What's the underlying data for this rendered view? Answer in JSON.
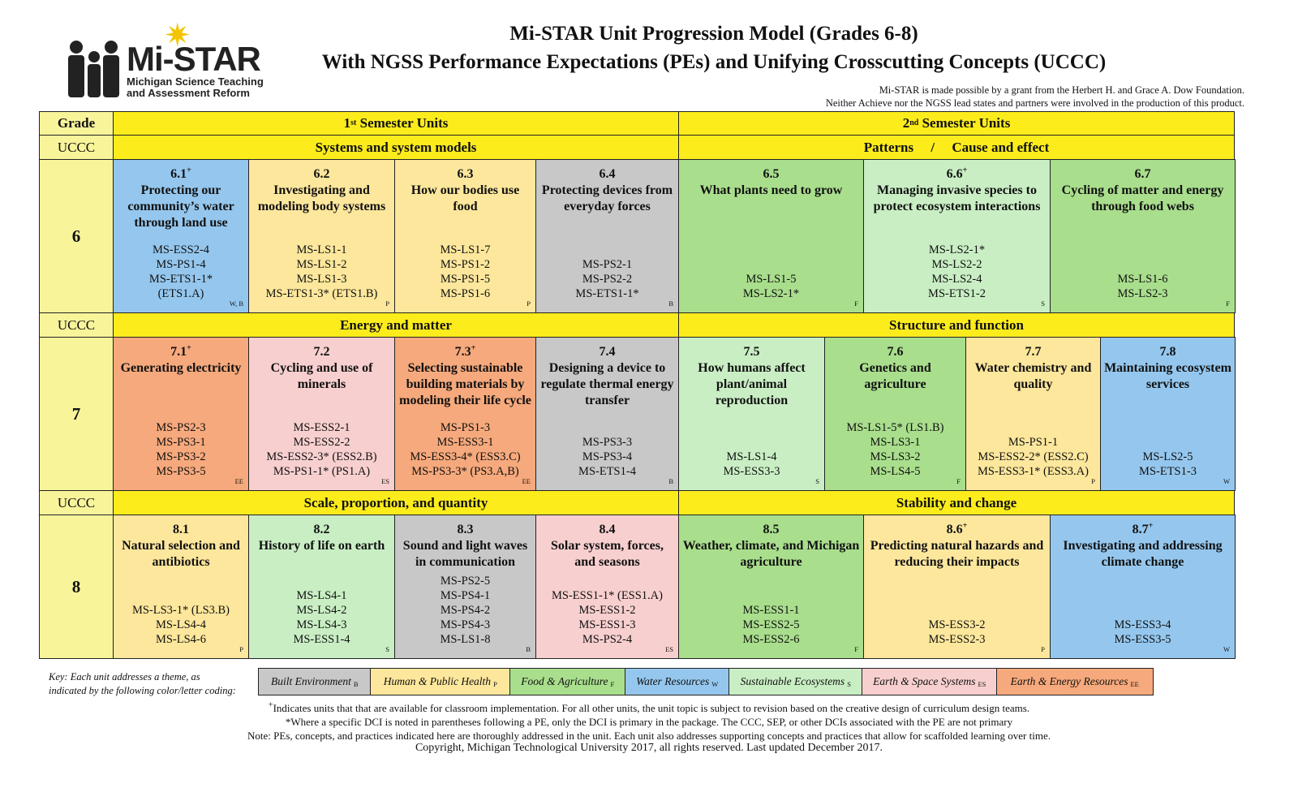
{
  "logo": {
    "brand": "Mi-STAR",
    "line1": "Michigan Science Teaching",
    "line2": "and Assessment Reform"
  },
  "title1": "Mi-STAR Unit Progression Model (Grades 6-8)",
  "title2": "With NGSS Performance Expectations (PEs) and Unifying Crosscutting Concepts (UCCC)",
  "credit1": "Mi-STAR is made possible by a grant from the Herbert H. and Grace A. Dow Foundation.",
  "credit2": "Neither Achieve nor the NGSS lead states and partners were involved in the production of this product.",
  "header": {
    "grade": "Grade",
    "sem1_num": "1",
    "sem1_sup": "st",
    "sem1_rest": " Semester Units",
    "sem2_num": "2",
    "sem2_sup": "nd",
    "sem2_rest": " Semester Units"
  },
  "uccc_label": "UCCC",
  "themes": {
    "g6_s1": "Systems and system models",
    "g6_s2": "Patterns     /     Cause and effect",
    "g7_s1": "Energy and matter",
    "g7_s2": "Structure and function",
    "g8_s1": "Scale, proportion, and quantity",
    "g8_s2": "Stability and change"
  },
  "grades": [
    "6",
    "7",
    "8"
  ],
  "units": {
    "g6": [
      {
        "num": "6.1",
        "plus": "+",
        "title": "Protecting our community’s water through land use",
        "color": "W",
        "pes": [
          "MS-ESS2-4",
          "MS-PS1-4",
          "MS-ETS1-1*",
          "(ETS1.A)"
        ],
        "code": "W, B"
      },
      {
        "num": "6.2",
        "plus": "",
        "title": "Investigating and modeling body systems",
        "color": "P",
        "pes": [
          "MS-LS1-1",
          "MS-LS1-2",
          "MS-LS1-3",
          "MS-ETS1-3* (ETS1.B)"
        ],
        "code": "P"
      },
      {
        "num": "6.3",
        "plus": "",
        "title": "How our bodies use food",
        "color": "P",
        "pes": [
          "MS-LS1-7",
          "MS-PS1-2",
          "MS-PS1-5",
          "MS-PS1-6"
        ],
        "code": "P"
      },
      {
        "num": "6.4",
        "plus": "",
        "title": "Protecting devices from everyday forces",
        "color": "B",
        "pes": [
          "MS-PS2-1",
          "MS-PS2-2",
          "MS-ETS1-1*"
        ],
        "code": "B"
      },
      {
        "num": "6.5",
        "plus": "",
        "title": "What plants need to grow",
        "color": "F",
        "pes": [
          "MS-LS1-5",
          "MS-LS2-1*"
        ],
        "code": "F"
      },
      {
        "num": "6.6",
        "plus": "+",
        "title": "Managing invasive species to protect ecosystem interactions",
        "color": "S",
        "pes": [
          "MS-LS2-1*",
          "MS-LS2-2",
          "MS-LS2-4",
          "MS-ETS1-2"
        ],
        "code": "S"
      },
      {
        "num": "6.7",
        "plus": "",
        "title": "Cycling of matter and energy through food webs",
        "color": "F",
        "pes": [
          "MS-LS1-6",
          "MS-LS2-3"
        ],
        "code": "F"
      }
    ],
    "g7": [
      {
        "num": "7.1",
        "plus": "+",
        "title": "Generating electricity",
        "color": "EE",
        "pes": [
          "MS-PS2-3",
          "MS-PS3-1",
          "MS-PS3-2",
          "MS-PS3-5"
        ],
        "code": "EE"
      },
      {
        "num": "7.2",
        "plus": "",
        "title": "Cycling and use of minerals",
        "color": "ES",
        "pes": [
          "MS-ESS2-1",
          "MS-ESS2-2",
          "MS-ESS2-3* (ESS2.B)",
          "MS-PS1-1* (PS1.A)"
        ],
        "code": "ES"
      },
      {
        "num": "7.3",
        "plus": "+",
        "title": "Selecting sustainable building materials by modeling their life cycle",
        "color": "EE",
        "pes": [
          "MS-PS1-3",
          "MS-ESS3-1",
          "MS-ESS3-4* (ESS3.C)",
          "MS-PS3-3* (PS3.A,B)"
        ],
        "code": "EE"
      },
      {
        "num": "7.4",
        "plus": "",
        "title": "Designing a device to regulate thermal energy transfer",
        "color": "B",
        "pes": [
          "MS-PS3-3",
          "MS-PS3-4",
          "MS-ETS1-4"
        ],
        "code": "B"
      },
      {
        "num": "7.5",
        "plus": "",
        "title": "How humans affect plant/animal reproduction",
        "color": "S",
        "pes": [
          "MS-LS1-4",
          "MS-ESS3-3"
        ],
        "code": "S"
      },
      {
        "num": "7.6",
        "plus": "",
        "title": "Genetics and agriculture",
        "color": "F",
        "pes": [
          "MS-LS1-5* (LS1.B)",
          "MS-LS3-1",
          "MS-LS3-2",
          "MS-LS4-5"
        ],
        "code": "F"
      },
      {
        "num": "7.7",
        "plus": "",
        "title": "Water chemistry and quality",
        "color": "P",
        "pes": [
          "MS-PS1-1",
          "MS-ESS2-2* (ESS2.C)",
          "MS-ESS3-1* (ESS3.A)"
        ],
        "code": "P"
      },
      {
        "num": "7.8",
        "plus": "",
        "title": "Maintaining ecosystem services",
        "color": "W",
        "pes": [
          "MS-LS2-5",
          "MS-ETS1-3"
        ],
        "code": "W"
      }
    ],
    "g8": [
      {
        "num": "8.1",
        "plus": "",
        "title": "Natural selection and antibiotics",
        "color": "P",
        "pes": [
          "MS-LS3-1* (LS3.B)",
          "MS-LS4-4",
          "MS-LS4-6"
        ],
        "code": "P"
      },
      {
        "num": "8.2",
        "plus": "",
        "title": "History of life on earth",
        "color": "S",
        "pes": [
          "MS-LS4-1",
          "MS-LS4-2",
          "MS-LS4-3",
          "MS-ESS1-4"
        ],
        "code": "S"
      },
      {
        "num": "8.3",
        "plus": "",
        "title": "Sound and light waves in communication",
        "color": "B",
        "pes": [
          "MS-PS2-5",
          "MS-PS4-1",
          "MS-PS4-2",
          "MS-PS4-3",
          "MS-LS1-8"
        ],
        "code": "B"
      },
      {
        "num": "8.4",
        "plus": "",
        "title": "Solar system, forces, and seasons",
        "color": "ES",
        "pes": [
          "MS-ESS1-1* (ESS1.A)",
          "MS-ESS1-2",
          "MS-ESS1-3",
          "MS-PS2-4"
        ],
        "code": "ES"
      },
      {
        "num": "8.5",
        "plus": "",
        "title": "Weather, climate, and Michigan agriculture",
        "color": "F",
        "pes": [
          "MS-ESS1-1",
          "MS-ESS2-5",
          "MS-ESS2-6"
        ],
        "code": "F"
      },
      {
        "num": "8.6",
        "plus": "+",
        "title": "Predicting natural hazards and reducing their impacts",
        "color": "P",
        "pes": [
          "MS-ESS3-2",
          "MS-ESS2-3"
        ],
        "code": "P"
      },
      {
        "num": "8.7",
        "plus": "+",
        "title": "Investigating and addressing climate change",
        "color": "W",
        "pes": [
          "MS-ESS3-4",
          "MS-ESS3-5"
        ],
        "code": "W"
      }
    ]
  },
  "key": {
    "label1": "Key: Each unit addresses a theme, as",
    "label2": "indicated by the following color/letter coding:",
    "items": [
      {
        "name": "Built Environment",
        "letter": "B",
        "color": "#c8c8c8"
      },
      {
        "name": "Human & Public Health",
        "letter": "P",
        "color": "#fde79c"
      },
      {
        "name": "Food & Agriculture",
        "letter": "F",
        "color": "#a9de8d"
      },
      {
        "name": "Water Resources",
        "letter": "W",
        "color": "#95c7ee"
      },
      {
        "name": "Sustainable Ecosystems",
        "letter": "S",
        "color": "#c9eec4"
      },
      {
        "name": "Earth & Space Systems",
        "letter": "ES",
        "color": "#f8cfcf"
      },
      {
        "name": "Earth & Energy Resources",
        "letter": "EE",
        "color": "#f6a97c"
      }
    ]
  },
  "footer": {
    "plus_mark": "+",
    "line1": "Indicates units that that are available for classroom implementation.  For all other units, the unit topic is subject to revision based on the creative design of curriculum design teams.",
    "line2": "*Where a specific DCI is noted in parentheses following a PE, only the DCI is primary in the package. The CCC, SEP, or other DCIs associated with the PE are not primary",
    "line3": "Note: PEs, concepts, and practices indicated here are thoroughly addressed in the unit. Each unit also addresses supporting concepts and practices that allow for scaffolded learning over time.",
    "line4": "Copyright, Michigan Technological University 2017, all rights reserved. Last updated December 2017."
  }
}
